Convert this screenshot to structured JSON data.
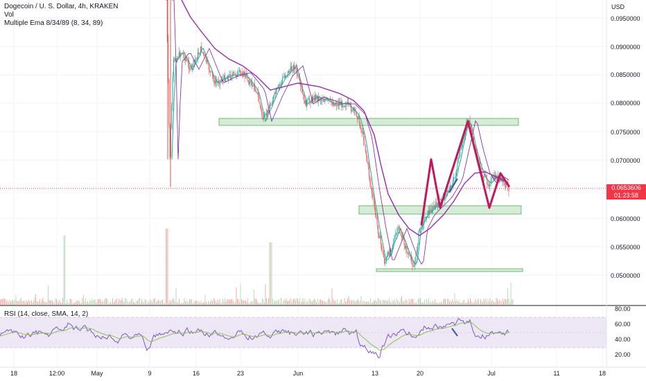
{
  "header": {
    "symbol_line": "Dogecoin / U. S. Dollar, 4h, KRAKEN",
    "volume_label": "Vol",
    "ema_label": "Multiple Ema 8/34/89 (8, 34, 89)",
    "currency": "USD"
  },
  "rsi": {
    "label": "RSI (14, close, SMA, 14, 2)",
    "ticks": [
      "80.00",
      "60.00",
      "40.00",
      "20.00"
    ]
  },
  "price_axis": {
    "ticks": [
      "0.0950000",
      "0.0900000",
      "0.0850000",
      "0.0800000",
      "0.0750000",
      "0.0700000",
      "0.0600000",
      "0.0550000",
      "0.0500000"
    ],
    "current_price": "0.0653606",
    "countdown": "01:23:58"
  },
  "time_axis": {
    "ticks": [
      "18",
      "12:00",
      "May",
      "9",
      "16",
      "23",
      "Jun",
      "13",
      "20",
      "Jul",
      "11",
      "18"
    ]
  },
  "colors": {
    "up": "#26a69a",
    "down": "#ef5350",
    "ema_slow": "#9c27b0",
    "pattern": "#c2185b",
    "zone_fill": "#c8e6c9",
    "zone_border": "#4caf50",
    "rsi_line": "#7e57c2",
    "rsi_ma": "#8bc34a",
    "rsi_band": "#ede7f6",
    "price_line": "#f23645"
  },
  "icons": []
}
